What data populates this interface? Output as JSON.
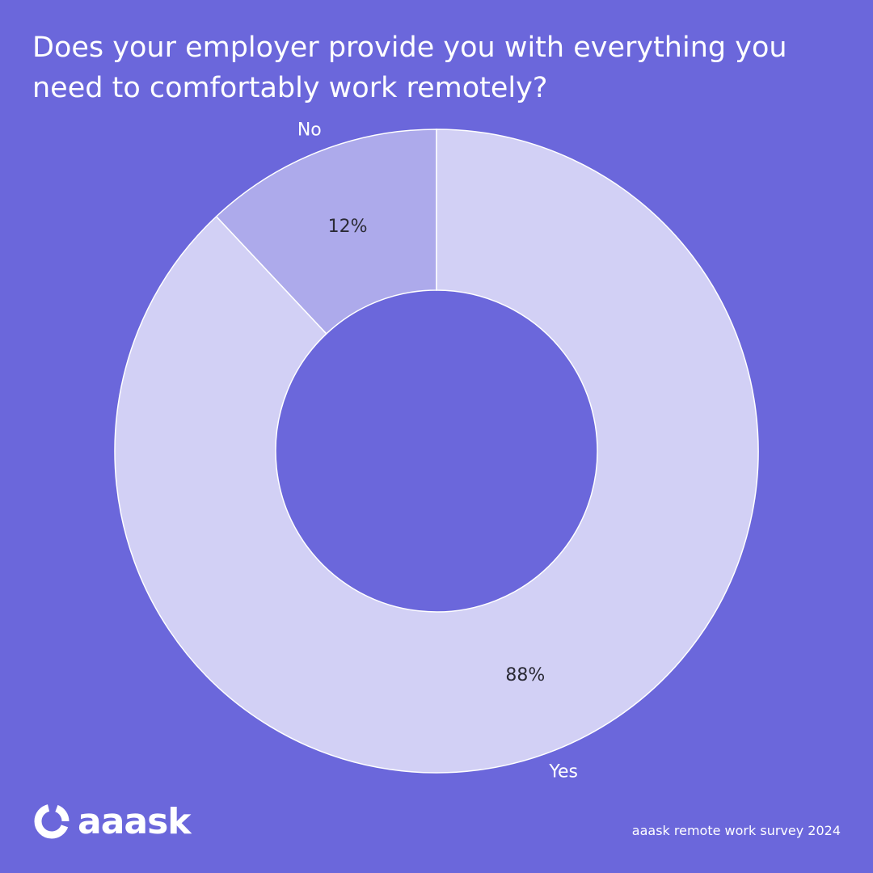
{
  "header": {
    "title_line1": "Does your employer provide you with everything you",
    "title_line2": "need to comfortably work remotely?"
  },
  "chart_data": {
    "type": "pie",
    "donut": true,
    "labels": [
      "No",
      "Yes"
    ],
    "values": [
      12,
      88
    ],
    "value_labels": [
      "12%",
      "88%"
    ],
    "colors": [
      "#adaaeb",
      "#d2d0f5"
    ],
    "legend": "none"
  },
  "colors": {
    "background": "#6b67db",
    "text_light": "#ffffff",
    "text_dark": "#2a2a35"
  },
  "brand": {
    "logo_text": "aaask",
    "logo_icon": "ring-logo-icon"
  },
  "footer": {
    "source": "aaask remote work survey 2024"
  }
}
